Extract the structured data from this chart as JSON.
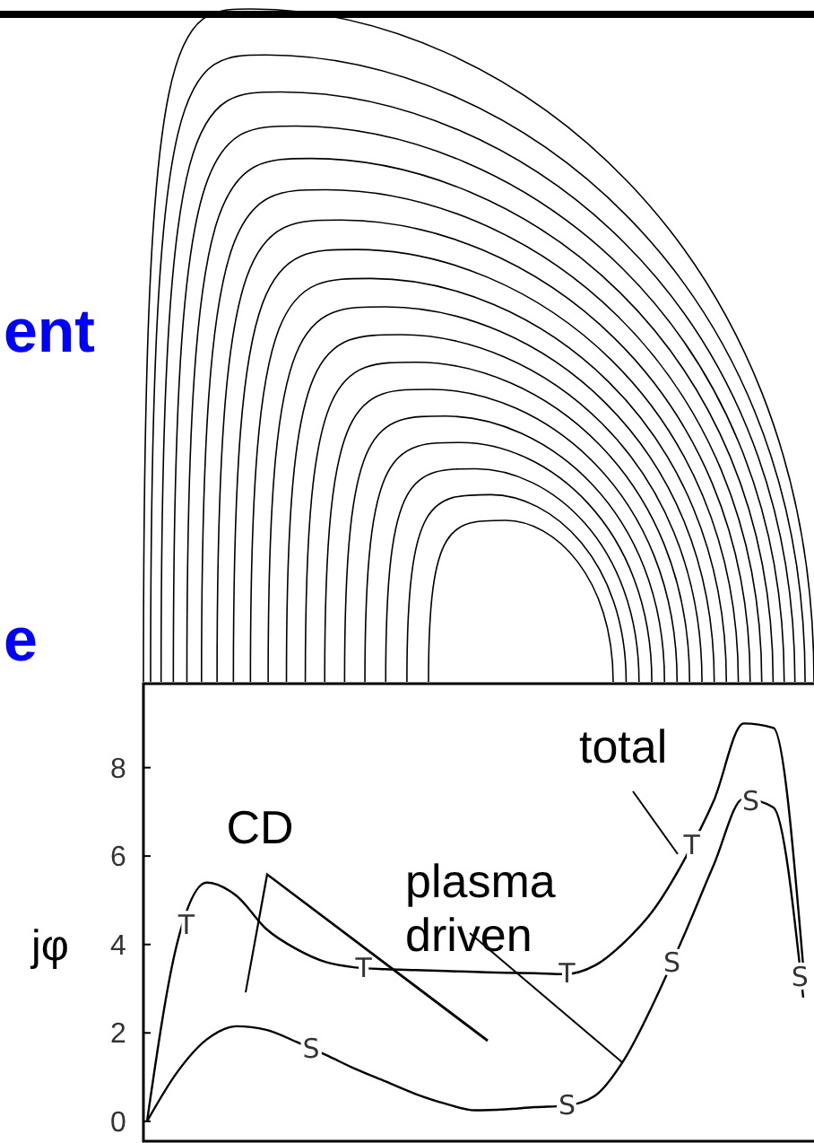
{
  "chart_data": {
    "type": "line",
    "ylabel": "jφ",
    "annotations": [
      "ent",
      "e",
      "CD",
      "plasma driven",
      "total"
    ],
    "categories": [
      null,
      null,
      null,
      null,
      null,
      null,
      null,
      null,
      null,
      null,
      null,
      null,
      null,
      null,
      null,
      null,
      null,
      null,
      null,
      null,
      null,
      null,
      null
    ],
    "series": [
      {
        "name": "T",
        "color": "#000000",
        "values": [
          0,
          4.0,
          5.4,
          5.1,
          4.35,
          3.9,
          3.6,
          3.48,
          3.44,
          3.42,
          3.4,
          3.38,
          3.36,
          3.35,
          3.33,
          3.52,
          4.05,
          4.8,
          5.9,
          7.25,
          9.0,
          8.9,
          3.5
        ]
      },
      {
        "name": "S",
        "color": "#000000",
        "values": [
          0,
          1.1,
          1.85,
          2.15,
          2.07,
          1.8,
          1.5,
          1.18,
          0.9,
          0.62,
          0.4,
          0.25,
          0.27,
          0.32,
          0.35,
          0.57,
          1.4,
          2.7,
          4.2,
          5.8,
          7.3,
          7.1,
          2.8
        ]
      }
    ],
    "ylim": [
      -0.45,
      9.9
    ],
    "yticks": [
      0,
      2,
      4,
      6,
      8
    ],
    "tick_labels": "y",
    "grid": false,
    "marker": "none",
    "line_style": "solid"
  }
}
